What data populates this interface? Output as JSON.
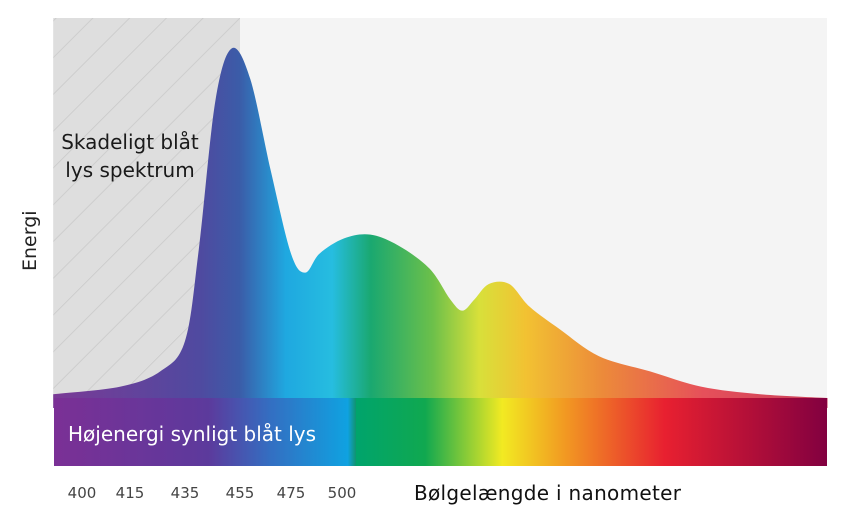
{
  "chart_data": {
    "type": "area",
    "title": "",
    "xlabel": "Bølgelængde i nanometer",
    "ylabel": "Energi",
    "x_tick_labels": [
      "400",
      "415",
      "435",
      "455",
      "475",
      "500"
    ],
    "x_ticks": [
      400,
      415,
      435,
      455,
      475,
      500
    ],
    "shaded_region": {
      "label": "Skadeligt blåt lys spektrum",
      "range_nm": [
        391,
        455
      ],
      "pattern": "diagonal-hatch",
      "color": "#dcdcdc"
    },
    "band": {
      "label": "Højenergi synligt blåt lys",
      "range_nm": [
        391,
        500
      ]
    },
    "series": [
      {
        "x": [
          391,
          412,
          426,
          435,
          440,
          446,
          452,
          459,
          467,
          475,
          482,
          489,
          501,
          514,
          528,
          543,
          553,
          559,
          565,
          572,
          582,
          592,
          607,
          626,
          651,
          676,
          705,
          738
        ],
        "y": [
          0.01,
          0.03,
          0.07,
          0.15,
          0.39,
          0.78,
          0.92,
          0.84,
          0.6,
          0.38,
          0.33,
          0.38,
          0.42,
          0.43,
          0.4,
          0.34,
          0.26,
          0.23,
          0.26,
          0.3,
          0.3,
          0.24,
          0.18,
          0.11,
          0.07,
          0.03,
          0.01,
          0
        ]
      }
    ],
    "ylim": [
      0,
      1
    ],
    "grid": false,
    "legend": "none",
    "colors": {
      "background": "#f4f4f4",
      "violet": "#7a2a90",
      "blue": "#1a90d8",
      "cyan": "#00b0e8",
      "green": "#00a060",
      "yellow": "#f0e820",
      "orange": "#f09020",
      "red": "#e82030",
      "dark_red": "#800040"
    }
  }
}
